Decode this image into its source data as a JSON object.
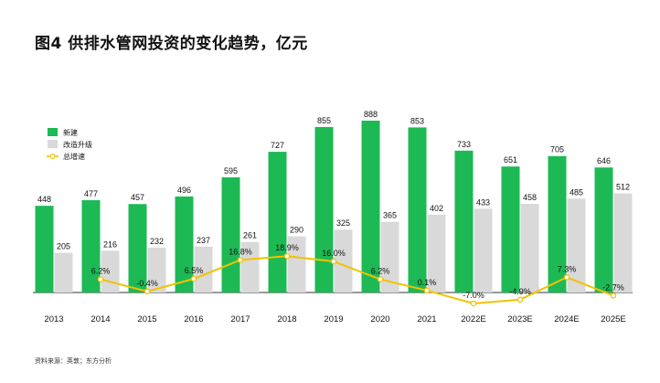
{
  "title": "图4 供排水管网投资的变化趋势，亿元",
  "source": "资料来源：英敦；东方分析",
  "colors": {
    "new": "#1db954",
    "upgrade": "#d9d9d9",
    "growth": "#f2c200",
    "axis": "#333333"
  },
  "chart_data": {
    "type": "bar",
    "categories": [
      "2013",
      "2014",
      "2015",
      "2016",
      "2017",
      "2018",
      "2019",
      "2020",
      "2021",
      "2022E",
      "2023E",
      "2024E",
      "2025E"
    ],
    "series": [
      {
        "name": "新建",
        "type": "bar",
        "values": [
          448,
          477,
          457,
          496,
          595,
          727,
          855,
          888,
          853,
          733,
          651,
          705,
          646
        ]
      },
      {
        "name": "改造升级",
        "type": "bar",
        "values": [
          205,
          216,
          232,
          237,
          261,
          290,
          325,
          365,
          402,
          433,
          458,
          485,
          512
        ]
      },
      {
        "name": "总增速",
        "type": "line",
        "x": [
          "2014",
          "2015",
          "2016",
          "2017",
          "2018",
          "2019",
          "2020",
          "2021",
          "2022E",
          "2023E",
          "2024E",
          "2025E"
        ],
        "values": [
          6.2,
          -0.4,
          6.5,
          16.8,
          18.9,
          16.0,
          6.2,
          0.1,
          -7.0,
          -4.9,
          7.3,
          -2.7
        ],
        "labels": [
          "6.2%",
          "-0.4%",
          "6.5%",
          "16.8%",
          "18.9%",
          "16.0%",
          "6.2%",
          "0.1%",
          "-7.0%",
          "-4.9%",
          "7.3%",
          "-2.7%"
        ]
      }
    ],
    "legend_position": "top-left",
    "grid": false
  }
}
